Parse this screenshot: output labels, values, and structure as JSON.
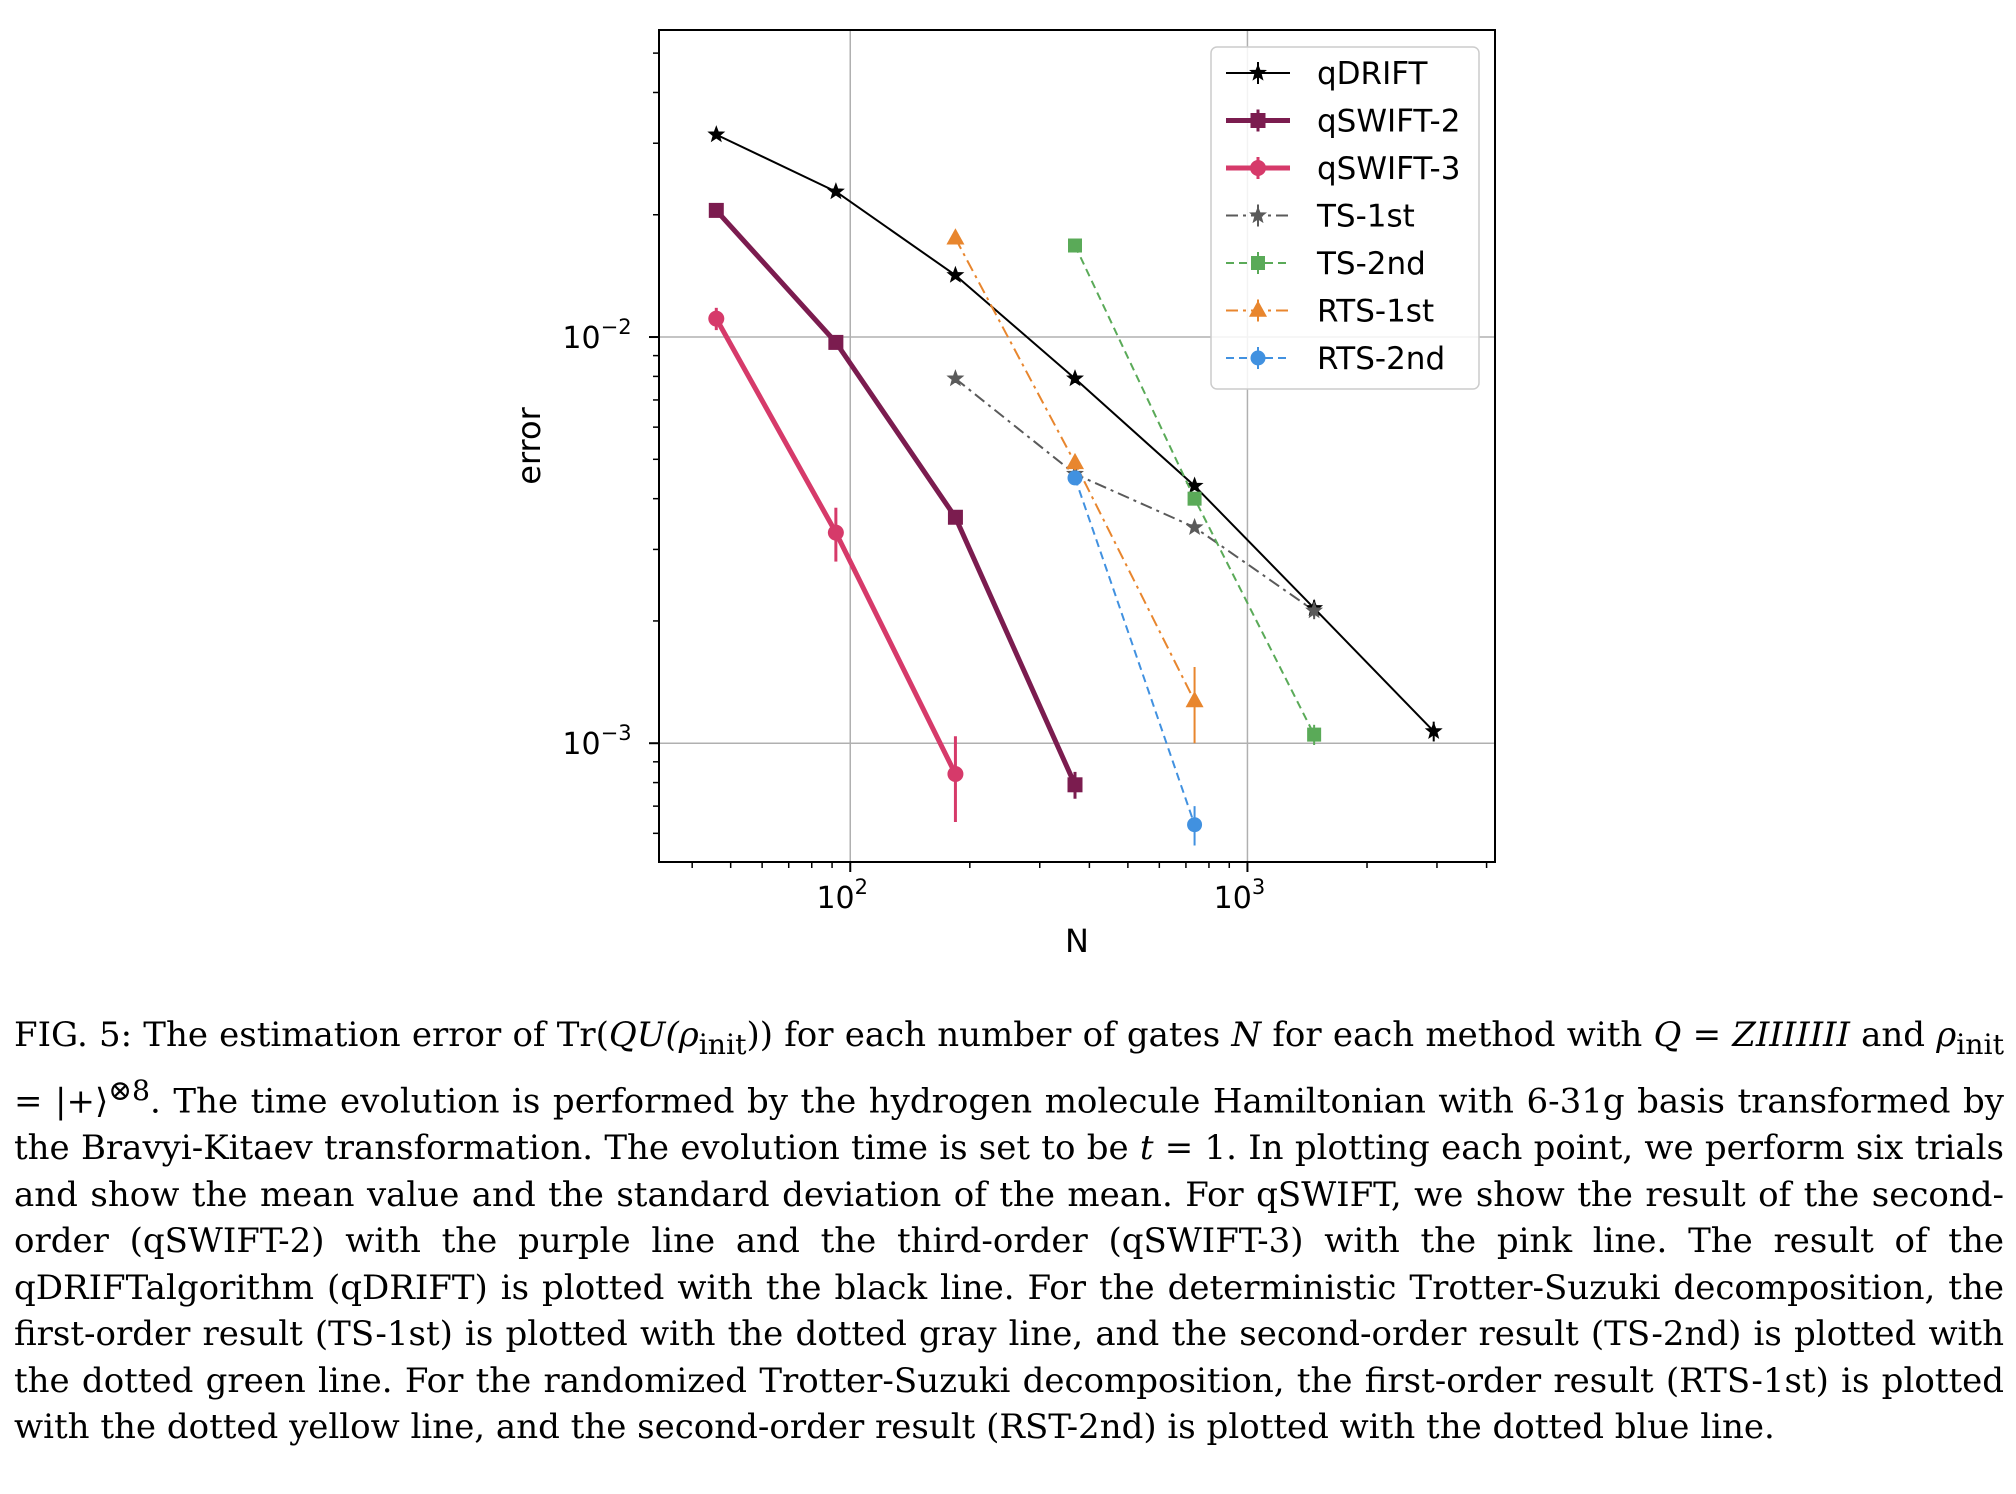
{
  "chart_data": {
    "type": "line",
    "title": "",
    "xlabel": "N",
    "ylabel": "error",
    "x_scale": "log",
    "y_scale": "log",
    "xlim": [
      33,
      4200
    ],
    "ylim": [
      0.00051,
      0.057
    ],
    "grid": true,
    "legend_position": "top-right",
    "x_ticks": [
      {
        "value": 100,
        "base": "10",
        "exp": "2"
      },
      {
        "value": 1000,
        "base": "10",
        "exp": "3"
      }
    ],
    "y_ticks": [
      {
        "value": 0.01,
        "base": "10",
        "exp": "−2"
      },
      {
        "value": 0.001,
        "base": "10",
        "exp": "−3"
      }
    ],
    "series": [
      {
        "name": "qDRIFT",
        "color": "#000000",
        "marker": "star",
        "dash": "solid",
        "width": 2,
        "x": [
          46,
          92,
          184,
          368,
          736,
          1472,
          2944
        ],
        "y": [
          0.0315,
          0.0228,
          0.0142,
          0.0079,
          0.0043,
          0.00215,
          0.00107
        ],
        "err": [
          0.0004,
          0.0003,
          0.0002,
          0.0001,
          8e-05,
          0.0001,
          6e-05
        ]
      },
      {
        "name": "qSWIFT-2",
        "color": "#7b1c4f",
        "marker": "square",
        "dash": "solid",
        "width": 5,
        "x": [
          46,
          92,
          184,
          368
        ],
        "y": [
          0.0205,
          0.0097,
          0.0036,
          0.00079
        ],
        "err": [
          0.0005,
          0.0003,
          0.0001,
          6e-05
        ]
      },
      {
        "name": "qSWIFT-3",
        "color": "#d63a6a",
        "marker": "circle",
        "dash": "solid",
        "width": 5,
        "x": [
          46,
          92,
          184
        ],
        "y": [
          0.0111,
          0.0033,
          0.00084
        ],
        "err": [
          0.0007,
          0.0005,
          0.0002
        ]
      },
      {
        "name": "TS-1st",
        "color": "#5a5a5a",
        "marker": "star",
        "dash": "dashdot",
        "width": 2,
        "x": [
          184,
          368,
          736,
          1472
        ],
        "y": [
          0.0079,
          0.0046,
          0.0034,
          0.00212
        ],
        "err": [
          0.0001,
          8e-05,
          7e-05,
          0.0001
        ]
      },
      {
        "name": "TS-2nd",
        "color": "#5aaa58",
        "marker": "square",
        "dash": "dashed",
        "width": 2,
        "x": [
          368,
          736,
          1472
        ],
        "y": [
          0.0168,
          0.004,
          0.00105
        ],
        "err": [
          0.0002,
          8e-05,
          6e-05
        ]
      },
      {
        "name": "RTS-1st",
        "color": "#e8862e",
        "marker": "triangle",
        "dash": "dashdot",
        "width": 2,
        "x": [
          184,
          368,
          736
        ],
        "y": [
          0.0175,
          0.0049,
          0.00127
        ],
        "err": [
          0.0004,
          0.0002,
          0.00027
        ]
      },
      {
        "name": "RTS-2nd",
        "color": "#4191e0",
        "marker": "circle",
        "dash": "dashed",
        "width": 2,
        "x": [
          368,
          736
        ],
        "y": [
          0.0045,
          0.00063
        ],
        "err": [
          8e-05,
          7e-05
        ]
      }
    ]
  },
  "caption": {
    "fig_label": "FIG. 5:",
    "sentence_1_start": " The estimation error of Tr(",
    "q_symbol": "QU",
    "rho_open": "(ρ",
    "init_sub": "init",
    "sentence_1_mid": ")) for each number of gates ",
    "n_symbol": "N",
    "sentence_1_mid2": " for each method with ",
    "q_eq_symbol": "Q",
    "q_value": " = ZIIIIIII",
    "and_word": " and ",
    "rho_symbol": "ρ",
    "init_sub2": "init",
    "rho_value": " = |+⟩",
    "tensor_sup": "⊗8",
    "sentence_2": ". The time evolution is performed by the hydrogen molecule Hamiltonian with 6-31g basis transformed by the Bravyi-Kitaev transformation. The evolution time is set to be ",
    "t_symbol": "t",
    "t_value": " = 1",
    "rest": ". In plotting each point, we perform six trials and show the mean value and the standard deviation of the mean. For qSWIFT, we show the result of the second-order (qSWIFT-2) with the purple line and the third-order (qSWIFT-3) with the pink line. The result of the qDRIFTalgorithm (qDRIFT) is plotted with the black line. For the deterministic Trotter-Suzuki decomposition, the first-order result (TS-1st) is plotted with the dotted gray line, and the second-order result (TS-2nd) is plotted with the dotted green line. For the randomized Trotter-Suzuki decomposition, the first-order result (RTS-1st) is plotted with the dotted yellow line, and the second-order result (RST-2nd) is plotted with the dotted blue line."
  }
}
